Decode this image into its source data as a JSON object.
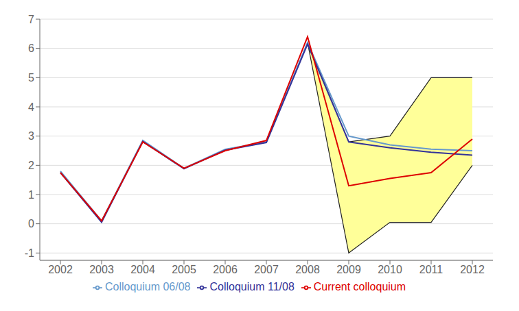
{
  "chart_data": {
    "type": "line",
    "x": [
      2002,
      2003,
      2004,
      2005,
      2006,
      2007,
      2008,
      2009,
      2010,
      2011,
      2012
    ],
    "series": [
      {
        "type": "band",
        "color": "#ffff99",
        "lower": [
          null,
          null,
          null,
          null,
          null,
          null,
          6.2,
          -1.0,
          0.05,
          0.05,
          2.0
        ],
        "upper": [
          null,
          null,
          null,
          null,
          null,
          null,
          6.2,
          2.8,
          3.0,
          5.0,
          5.0
        ]
      },
      {
        "name": "Colloquium 06/08",
        "color": "#6699cc",
        "values": [
          1.8,
          0.1,
          2.85,
          1.9,
          2.55,
          2.8,
          6.2,
          3.0,
          2.7,
          2.55,
          2.5
        ]
      },
      {
        "name": "Colloquium 11/08",
        "color": "#333399",
        "values": [
          1.75,
          0.05,
          2.82,
          1.88,
          2.52,
          2.78,
          6.15,
          2.8,
          2.6,
          2.45,
          2.35
        ]
      },
      {
        "name": "Current colloquium",
        "color": "#dd0000",
        "values": [
          1.75,
          0.1,
          2.8,
          1.9,
          2.5,
          2.85,
          6.4,
          1.3,
          1.55,
          1.75,
          2.9
        ]
      }
    ],
    "xlim": [
      2001.5,
      2012.5
    ],
    "xticks": [
      2002,
      2003,
      2004,
      2005,
      2006,
      2007,
      2008,
      2009,
      2010,
      2011,
      2012
    ],
    "ylim": [
      -1.25,
      7.0
    ],
    "yticks": [
      -1,
      0,
      1,
      2,
      3,
      4,
      5,
      6,
      7
    ],
    "grid": true,
    "legend": "bottom"
  }
}
